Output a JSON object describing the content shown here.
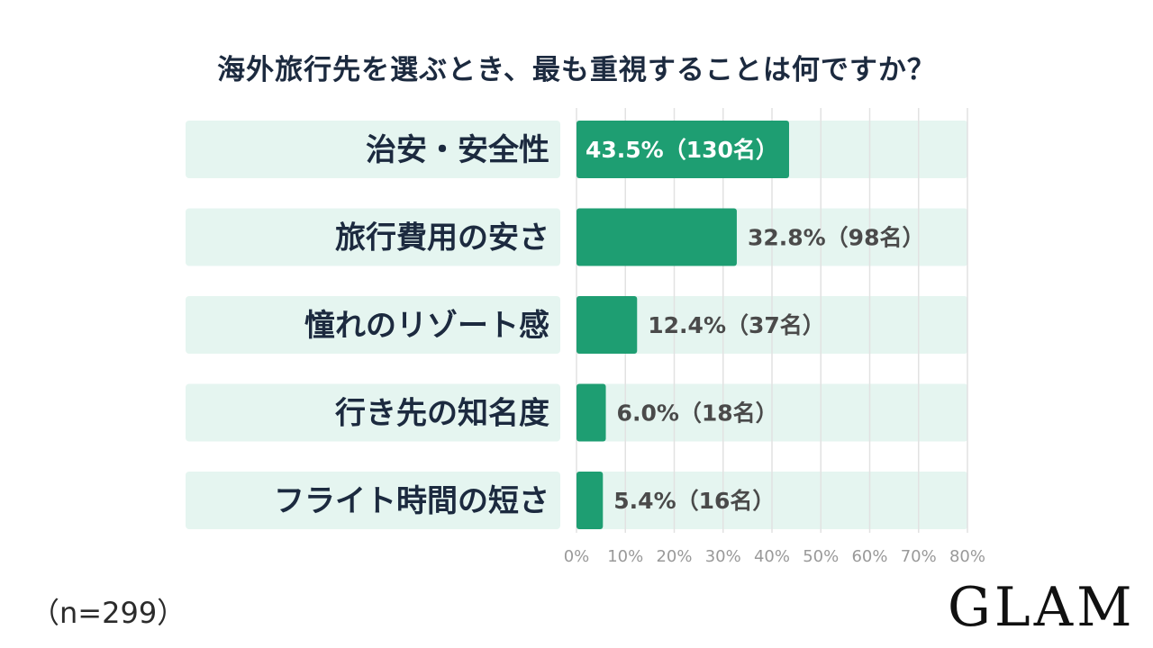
{
  "chart_data": {
    "type": "bar",
    "orientation": "horizontal",
    "title": "海外旅行先を選ぶとき、最も重視することは何ですか？",
    "categories": [
      "治安・安全性",
      "旅行費用の安さ",
      "憧れのリゾート感",
      "行き先の知名度",
      "フライト時間の短さ"
    ],
    "values": [
      43.5,
      32.8,
      12.4,
      6.0,
      5.4
    ],
    "data_labels": [
      "43.5%（130名）",
      "32.8%（98名）",
      "12.4%（37名）",
      "6.0%（18名）",
      "5.4%（16名）"
    ],
    "xlim": [
      0,
      80
    ],
    "x_ticks": [
      0,
      10,
      20,
      30,
      40,
      50,
      60,
      70,
      80
    ],
    "x_tick_labels": [
      "0%",
      "10%",
      "20%",
      "30%",
      "40%",
      "50%",
      "60%",
      "70%",
      "80%"
    ],
    "grid": true,
    "colors": {
      "bar": "#1e9e72",
      "track": "#e5f5f0",
      "label": "#1c2a3f",
      "value": "#4a4a4a",
      "inside_value": "#ffffff",
      "grid": "#e2e2e2",
      "tick": "#999999"
    }
  },
  "footer": {
    "sample_size": "（n=299）",
    "logo": "GLAM"
  }
}
